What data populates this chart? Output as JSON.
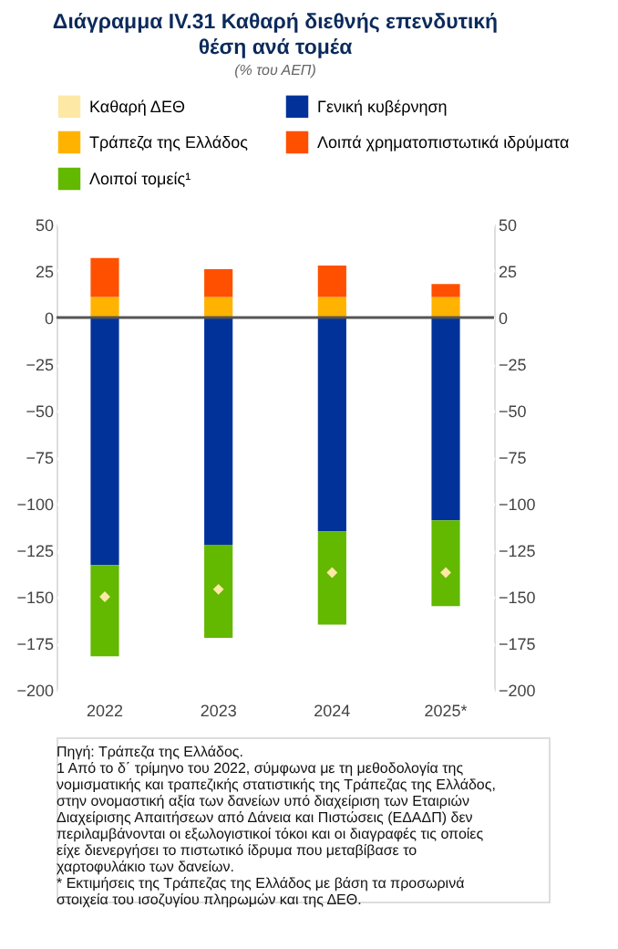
{
  "chart_data": {
    "type": "bar",
    "stacked": true,
    "title": "Διάγραμμα IV.31 Καθαρή διεθνής επενδυτική θέση ανά τομέα",
    "subtitle": "(% του ΑΕΠ)",
    "categories": [
      "2022",
      "2023",
      "2024",
      "2025*"
    ],
    "series": [
      {
        "name": "Καθαρή ΔΕΘ",
        "type": "scatter",
        "marker": "diamond",
        "color": "#fde8a6",
        "values": [
          -150,
          -146,
          -137,
          -137
        ]
      },
      {
        "name": "Γενική κυβέρνηση",
        "color": "#00329a",
        "values": [
          -133,
          -122,
          -115,
          -109
        ]
      },
      {
        "name": "Τράπεζα της Ελλάδος",
        "color": "#ffb300",
        "values": [
          11,
          11,
          11,
          11
        ]
      },
      {
        "name": "Λοιπά χρηματοπιστωτικά ιδρύματα",
        "color": "#ff5000",
        "values": [
          21,
          15,
          17,
          7
        ]
      },
      {
        "name": "Λοιποί τομείς¹",
        "color": "#63b800",
        "values": [
          -49,
          -50,
          -50,
          -46
        ]
      }
    ],
    "ylim": [
      -200,
      50
    ],
    "yticks": [
      -200,
      -175,
      -150,
      -125,
      -100,
      -75,
      -50,
      -25,
      0,
      25,
      50
    ],
    "y2lim": [
      -200,
      50
    ],
    "y2ticks": [
      -200,
      -175,
      -150,
      -125,
      -100,
      -75,
      -50,
      -25,
      0,
      25,
      50
    ],
    "ref_lines": [
      {
        "axis": "y",
        "value": 0,
        "color": "#555555"
      }
    ],
    "grid": true,
    "legend": "top",
    "annotations": [
      "Πηγή: Τράπεζα της Ελλάδος.",
      "1 Από το δ΄ τρίμηνο του 2022, σύμφωνα με τη μεθοδολογία της νομισματικής και τραπεζικής στατιστικής της Τράπεζας της Ελλάδος, στην ονομαστική αξία των δανείων υπό διαχείριση των Εταιριών Διαχείρισης Απαιτήσεων από Δάνεια και Πιστώσεις (ΕΔΑΔΠ) δεν περιλαμβάνονται οι εξωλογιστικοί τόκοι και οι διαγραφές τις οποίες είχε διενεργήσει το πιστωτικό ίδρυμα που μεταβίβασε το χαρτοφυλάκιο των δανείων.",
      "* Εκτιμήσεις της Τράπεζας της Ελλάδος με βάση τα προσωρινά στοιχεία του ισοζυγίου πληρωμών και της ΔΕΘ."
    ]
  }
}
